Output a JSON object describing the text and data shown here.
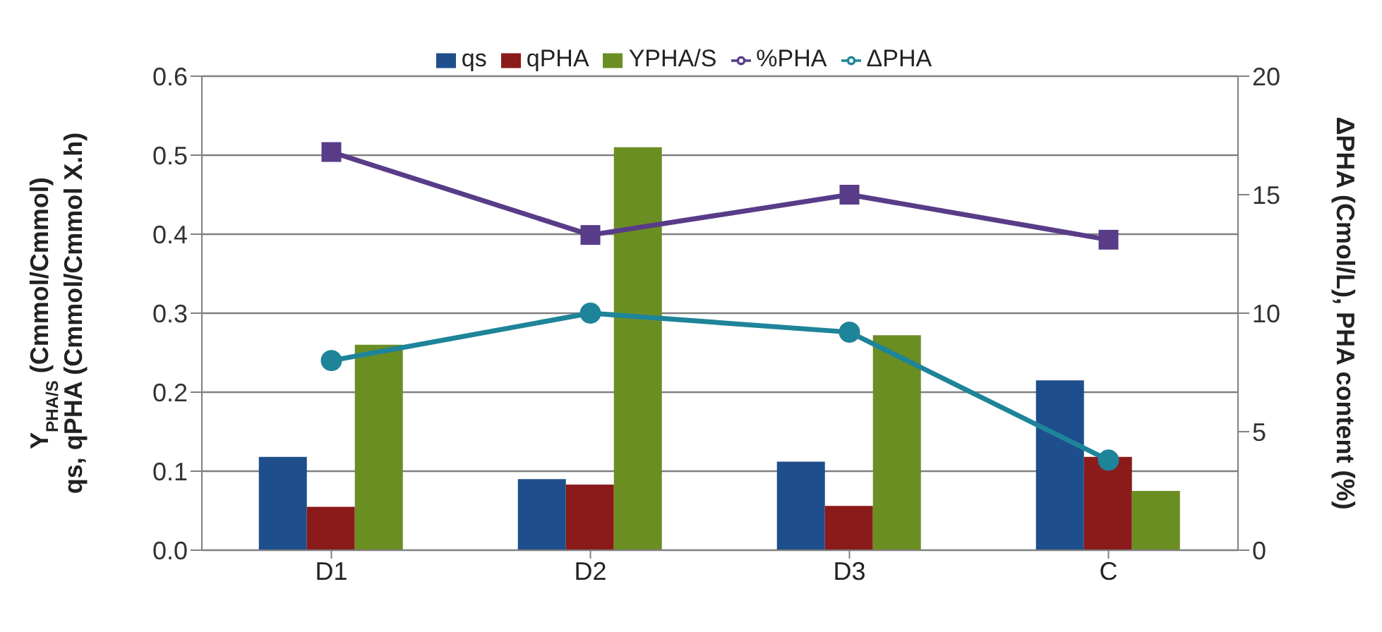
{
  "chart_data": {
    "type": "bar",
    "categories": [
      "D1",
      "D2",
      "D3",
      "C"
    ],
    "series": [
      {
        "name": "qs",
        "color": "#1f4e8c",
        "values": [
          0.118,
          0.09,
          0.112,
          0.215
        ]
      },
      {
        "name": "qPHA",
        "color": "#8b1a1a",
        "values": [
          0.055,
          0.083,
          0.056,
          0.118
        ]
      },
      {
        "name": "YPHA/S",
        "color": "#6b8e23",
        "values": [
          0.26,
          0.51,
          0.272,
          0.075
        ]
      },
      {
        "name": "%PHA",
        "type": "line",
        "axis": "y2",
        "marker": "square",
        "color": "#583c88",
        "values": [
          16.8,
          13.3,
          15.0,
          13.1
        ]
      },
      {
        "name": "ΔPHA",
        "type": "line",
        "axis": "y2",
        "marker": "circle",
        "color": "#1e8499",
        "values": [
          8.0,
          10.0,
          9.2,
          3.8
        ]
      }
    ],
    "ylabel": "Y$_{PHA/S}$ (Cmmol/Cmmol)\nqs, qPHA (Cmmol/Cmmol X.h)",
    "y2label": "ΔPHA (Cmol/L), PHA content (%)",
    "ylim": [
      0,
      0.6
    ],
    "yticks": [
      {
        "value": 0,
        "label": "0.0"
      },
      0.1,
      0.2,
      0.3,
      0.4,
      0.5,
      0.6
    ],
    "y2lim": [
      0,
      20
    ],
    "y2ticks": [
      0,
      5,
      10,
      15,
      20
    ],
    "grid": "y",
    "legend": "top"
  }
}
